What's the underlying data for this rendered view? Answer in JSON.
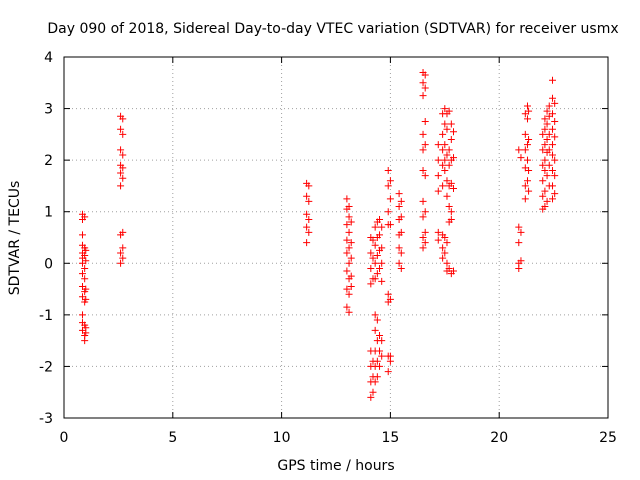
{
  "chart_data": {
    "type": "scatter",
    "title": "Day 090 of 2018, Sidereal Day-to-day VTEC variation (SDTVAR) for receiver usmx",
    "xlabel": "GPS time / hours",
    "ylabel": "SDTVAR / TECUs",
    "xlim": [
      0,
      25
    ],
    "ylim": [
      -3,
      4
    ],
    "xticks": [
      "0",
      "5",
      "10",
      "15",
      "20",
      "25"
    ],
    "yticks": [
      "-3",
      "-2",
      "-1",
      "0",
      "1",
      "2",
      "3",
      "4"
    ],
    "grid": true,
    "marker": "+",
    "color": "#ff0000",
    "points": [
      [
        0.85,
        0.95
      ],
      [
        0.85,
        0.85
      ],
      [
        0.85,
        0.55
      ],
      [
        0.85,
        0.35
      ],
      [
        0.85,
        0.2
      ],
      [
        0.85,
        0.1
      ],
      [
        0.85,
        0.0
      ],
      [
        0.85,
        -0.2
      ],
      [
        0.85,
        -0.45
      ],
      [
        0.85,
        -0.65
      ],
      [
        0.85,
        -1.0
      ],
      [
        0.85,
        -1.15
      ],
      [
        0.85,
        -1.3
      ],
      [
        0.95,
        0.9
      ],
      [
        0.95,
        0.3
      ],
      [
        0.95,
        0.15
      ],
      [
        0.95,
        -0.1
      ],
      [
        0.95,
        -0.3
      ],
      [
        0.95,
        -0.55
      ],
      [
        0.95,
        -0.75
      ],
      [
        0.95,
        -1.2
      ],
      [
        0.95,
        -1.4
      ],
      [
        0.95,
        -1.5
      ],
      [
        1.0,
        0.25
      ],
      [
        1.0,
        0.05
      ],
      [
        1.0,
        -0.5
      ],
      [
        1.0,
        -0.7
      ],
      [
        1.0,
        -1.25
      ],
      [
        1.0,
        -1.35
      ],
      [
        2.6,
        2.85
      ],
      [
        2.6,
        2.6
      ],
      [
        2.6,
        2.2
      ],
      [
        2.6,
        1.9
      ],
      [
        2.6,
        1.75
      ],
      [
        2.6,
        1.5
      ],
      [
        2.6,
        0.55
      ],
      [
        2.6,
        0.2
      ],
      [
        2.6,
        0.0
      ],
      [
        2.7,
        2.8
      ],
      [
        2.7,
        2.5
      ],
      [
        2.7,
        2.1
      ],
      [
        2.7,
        1.85
      ],
      [
        2.7,
        1.65
      ],
      [
        2.7,
        0.6
      ],
      [
        2.7,
        0.3
      ],
      [
        2.7,
        0.1
      ],
      [
        11.15,
        1.55
      ],
      [
        11.15,
        1.3
      ],
      [
        11.15,
        0.95
      ],
      [
        11.15,
        0.7
      ],
      [
        11.15,
        0.4
      ],
      [
        11.25,
        1.5
      ],
      [
        11.25,
        1.2
      ],
      [
        11.25,
        0.85
      ],
      [
        11.25,
        0.6
      ],
      [
        13.0,
        1.25
      ],
      [
        13.0,
        1.05
      ],
      [
        13.0,
        0.75
      ],
      [
        13.0,
        0.45
      ],
      [
        13.0,
        0.2
      ],
      [
        13.0,
        -0.15
      ],
      [
        13.0,
        -0.5
      ],
      [
        13.0,
        -0.85
      ],
      [
        13.1,
        1.1
      ],
      [
        13.1,
        0.9
      ],
      [
        13.1,
        0.6
      ],
      [
        13.1,
        0.3
      ],
      [
        13.1,
        0.0
      ],
      [
        13.1,
        -0.3
      ],
      [
        13.1,
        -0.6
      ],
      [
        13.1,
        -0.95
      ],
      [
        13.2,
        0.8
      ],
      [
        13.2,
        0.4
      ],
      [
        13.2,
        0.1
      ],
      [
        13.2,
        -0.25
      ],
      [
        13.2,
        -0.45
      ],
      [
        14.1,
        0.5
      ],
      [
        14.1,
        0.2
      ],
      [
        14.1,
        -0.1
      ],
      [
        14.1,
        -0.4
      ],
      [
        14.1,
        -1.7
      ],
      [
        14.1,
        -2.0
      ],
      [
        14.1,
        -2.3
      ],
      [
        14.1,
        -2.6
      ],
      [
        14.2,
        0.45
      ],
      [
        14.2,
        0.1
      ],
      [
        14.2,
        -0.3
      ],
      [
        14.2,
        -1.9
      ],
      [
        14.2,
        -2.2
      ],
      [
        14.2,
        -2.5
      ],
      [
        14.3,
        0.7
      ],
      [
        14.3,
        0.35
      ],
      [
        14.3,
        0.0
      ],
      [
        14.3,
        -0.3
      ],
      [
        14.3,
        -1.0
      ],
      [
        14.3,
        -1.3
      ],
      [
        14.3,
        -1.7
      ],
      [
        14.3,
        -2.0
      ],
      [
        14.3,
        -2.3
      ],
      [
        14.4,
        0.8
      ],
      [
        14.4,
        0.5
      ],
      [
        14.4,
        0.15
      ],
      [
        14.4,
        -0.2
      ],
      [
        14.4,
        -1.1
      ],
      [
        14.4,
        -1.5
      ],
      [
        14.4,
        -1.9
      ],
      [
        14.4,
        -2.2
      ],
      [
        14.5,
        0.85
      ],
      [
        14.5,
        0.55
      ],
      [
        14.5,
        0.25
      ],
      [
        14.5,
        -0.1
      ],
      [
        14.5,
        -1.4
      ],
      [
        14.5,
        -1.7
      ],
      [
        14.5,
        -2.0
      ],
      [
        14.6,
        0.7
      ],
      [
        14.6,
        0.3
      ],
      [
        14.6,
        0.0
      ],
      [
        14.6,
        -0.35
      ],
      [
        14.6,
        -1.5
      ],
      [
        14.6,
        -1.8
      ],
      [
        14.9,
        1.8
      ],
      [
        14.9,
        1.5
      ],
      [
        14.9,
        1.0
      ],
      [
        14.9,
        0.75
      ],
      [
        14.9,
        -0.6
      ],
      [
        14.9,
        -0.75
      ],
      [
        14.9,
        -1.8
      ],
      [
        14.9,
        -2.1
      ],
      [
        15.0,
        1.6
      ],
      [
        15.0,
        1.25
      ],
      [
        15.0,
        0.75
      ],
      [
        15.0,
        -0.7
      ],
      [
        15.0,
        -1.8
      ],
      [
        15.0,
        -1.9
      ],
      [
        15.4,
        1.35
      ],
      [
        15.4,
        1.1
      ],
      [
        15.4,
        0.85
      ],
      [
        15.4,
        0.55
      ],
      [
        15.4,
        0.3
      ],
      [
        15.4,
        0.0
      ],
      [
        15.5,
        1.2
      ],
      [
        15.5,
        0.9
      ],
      [
        15.5,
        0.6
      ],
      [
        15.5,
        0.2
      ],
      [
        15.5,
        -0.1
      ],
      [
        16.5,
        3.7
      ],
      [
        16.5,
        3.5
      ],
      [
        16.5,
        3.25
      ],
      [
        16.5,
        2.5
      ],
      [
        16.5,
        2.2
      ],
      [
        16.5,
        1.8
      ],
      [
        16.5,
        1.2
      ],
      [
        16.5,
        0.9
      ],
      [
        16.5,
        0.5
      ],
      [
        16.5,
        0.3
      ],
      [
        16.6,
        3.65
      ],
      [
        16.6,
        3.4
      ],
      [
        16.6,
        2.75
      ],
      [
        16.6,
        2.3
      ],
      [
        16.6,
        1.7
      ],
      [
        16.6,
        1.0
      ],
      [
        16.6,
        0.6
      ],
      [
        16.6,
        0.4
      ],
      [
        17.2,
        2.3
      ],
      [
        17.2,
        2.0
      ],
      [
        17.2,
        1.7
      ],
      [
        17.2,
        1.4
      ],
      [
        17.2,
        0.6
      ],
      [
        17.2,
        0.45
      ],
      [
        17.4,
        2.9
      ],
      [
        17.4,
        2.5
      ],
      [
        17.4,
        2.2
      ],
      [
        17.4,
        1.9
      ],
      [
        17.4,
        1.5
      ],
      [
        17.4,
        0.55
      ],
      [
        17.4,
        0.3
      ],
      [
        17.4,
        0.1
      ],
      [
        17.5,
        3.0
      ],
      [
        17.5,
        2.7
      ],
      [
        17.5,
        2.3
      ],
      [
        17.5,
        2.0
      ],
      [
        17.5,
        1.8
      ],
      [
        17.5,
        0.5
      ],
      [
        17.5,
        0.2
      ],
      [
        17.6,
        2.9
      ],
      [
        17.6,
        2.6
      ],
      [
        17.6,
        2.1
      ],
      [
        17.6,
        1.6
      ],
      [
        17.6,
        1.3
      ],
      [
        17.6,
        0.4
      ],
      [
        17.6,
        0.0
      ],
      [
        17.6,
        -0.15
      ],
      [
        17.7,
        2.95
      ],
      [
        17.7,
        2.2
      ],
      [
        17.7,
        1.9
      ],
      [
        17.7,
        1.5
      ],
      [
        17.7,
        1.1
      ],
      [
        17.7,
        0.8
      ],
      [
        17.7,
        -0.1
      ],
      [
        17.8,
        2.7
      ],
      [
        17.8,
        2.4
      ],
      [
        17.8,
        2.0
      ],
      [
        17.8,
        1.55
      ],
      [
        17.8,
        1.0
      ],
      [
        17.8,
        0.85
      ],
      [
        17.8,
        -0.2
      ],
      [
        17.9,
        2.55
      ],
      [
        17.9,
        2.05
      ],
      [
        17.9,
        1.45
      ],
      [
        17.9,
        -0.15
      ],
      [
        20.9,
        2.2
      ],
      [
        20.9,
        0.7
      ],
      [
        20.9,
        0.4
      ],
      [
        20.9,
        0.0
      ],
      [
        20.9,
        -0.1
      ],
      [
        21.0,
        2.05
      ],
      [
        21.0,
        0.6
      ],
      [
        21.0,
        0.05
      ],
      [
        21.2,
        2.9
      ],
      [
        21.2,
        2.5
      ],
      [
        21.2,
        2.2
      ],
      [
        21.2,
        1.85
      ],
      [
        21.2,
        1.5
      ],
      [
        21.2,
        1.25
      ],
      [
        21.3,
        3.05
      ],
      [
        21.3,
        2.8
      ],
      [
        21.3,
        2.3
      ],
      [
        21.3,
        2.0
      ],
      [
        21.3,
        1.6
      ],
      [
        21.35,
        2.95
      ],
      [
        21.35,
        2.4
      ],
      [
        21.35,
        1.8
      ],
      [
        21.35,
        1.4
      ],
      [
        22.0,
        2.5
      ],
      [
        22.0,
        2.2
      ],
      [
        22.0,
        1.9
      ],
      [
        22.0,
        1.6
      ],
      [
        22.0,
        1.3
      ],
      [
        22.0,
        1.05
      ],
      [
        22.1,
        2.8
      ],
      [
        22.1,
        2.6
      ],
      [
        22.1,
        2.3
      ],
      [
        22.1,
        2.0
      ],
      [
        22.1,
        1.8
      ],
      [
        22.1,
        1.4
      ],
      [
        22.1,
        1.1
      ],
      [
        22.2,
        2.95
      ],
      [
        22.2,
        2.7
      ],
      [
        22.2,
        2.4
      ],
      [
        22.2,
        2.15
      ],
      [
        22.2,
        1.7
      ],
      [
        22.2,
        1.2
      ],
      [
        22.3,
        3.05
      ],
      [
        22.3,
        2.85
      ],
      [
        22.3,
        2.5
      ],
      [
        22.3,
        2.2
      ],
      [
        22.3,
        1.9
      ],
      [
        22.3,
        1.5
      ],
      [
        22.45,
        3.55
      ],
      [
        22.45,
        3.2
      ],
      [
        22.45,
        2.9
      ],
      [
        22.45,
        2.6
      ],
      [
        22.45,
        2.3
      ],
      [
        22.45,
        2.1
      ],
      [
        22.45,
        1.8
      ],
      [
        22.45,
        1.5
      ],
      [
        22.45,
        1.25
      ],
      [
        22.55,
        3.1
      ],
      [
        22.55,
        2.75
      ],
      [
        22.55,
        2.45
      ],
      [
        22.55,
        2.0
      ],
      [
        22.55,
        1.7
      ],
      [
        22.55,
        1.35
      ]
    ]
  }
}
